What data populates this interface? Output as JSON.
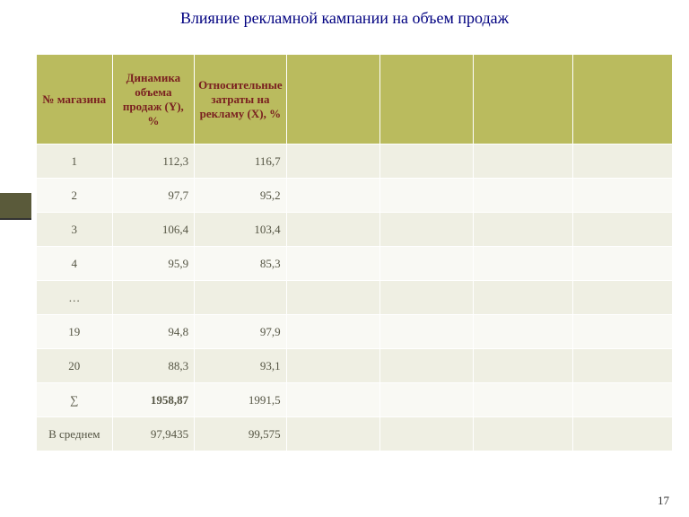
{
  "title": "Влияние рекламной кампании на объем продаж",
  "page_number": "17",
  "table": {
    "type": "table",
    "header_bg": "#babb5e",
    "header_fg": "#7a2020",
    "row_odd_bg": "#efefe3",
    "row_even_bg": "#f9f9f4",
    "columns": [
      "№ магазина",
      "Динамика объема продаж (Y),    %",
      "Относительные затраты на рекламу (X), %",
      "",
      "",
      "",
      ""
    ],
    "col_count": 7,
    "rows": [
      {
        "cells": [
          "1",
          "112,3",
          "116,7",
          "",
          "",
          "",
          ""
        ],
        "shade": "odd"
      },
      {
        "cells": [
          "2",
          "97,7",
          "95,2",
          "",
          "",
          "",
          ""
        ],
        "shade": "even"
      },
      {
        "cells": [
          "3",
          "106,4",
          "103,4",
          "",
          "",
          "",
          ""
        ],
        "shade": "odd"
      },
      {
        "cells": [
          "4",
          "95,9",
          "85,3",
          "",
          "",
          "",
          ""
        ],
        "shade": "even"
      },
      {
        "cells": [
          "…",
          "",
          "",
          "",
          "",
          "",
          ""
        ],
        "shade": "odd"
      },
      {
        "cells": [
          "19",
          "94,8",
          "97,9",
          "",
          "",
          "",
          ""
        ],
        "shade": "even"
      },
      {
        "cells": [
          "20",
          "88,3",
          "93,1",
          "",
          "",
          "",
          ""
        ],
        "shade": "odd"
      },
      {
        "cells": [
          "∑",
          "1958,87",
          "1991,5",
          "",
          "",
          "",
          ""
        ],
        "shade": "even",
        "bold_cols": [
          1
        ]
      },
      {
        "cells": [
          "В среднем",
          "97,9435",
          "99,575",
          "",
          "",
          "",
          ""
        ],
        "shade": "odd"
      }
    ],
    "col_widths_pct": [
      12,
      13,
      13,
      15,
      15,
      16,
      16
    ]
  }
}
